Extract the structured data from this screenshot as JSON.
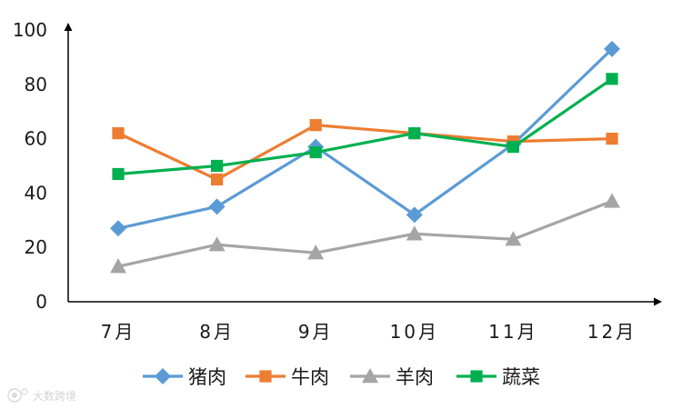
{
  "chart_data": {
    "type": "line",
    "title": "",
    "xlabel": "",
    "ylabel": "",
    "categories": [
      "7月",
      "8月",
      "9月",
      "10月",
      "11月",
      "12月"
    ],
    "ylim": [
      0,
      100
    ],
    "yticks": [
      0,
      20,
      40,
      60,
      80,
      100
    ],
    "grid": false,
    "legend_position": "bottom",
    "series": [
      {
        "name": "猪肉",
        "color": "#5B9BD5",
        "marker": "diamond",
        "values": [
          27,
          35,
          57,
          32,
          58,
          93
        ]
      },
      {
        "name": "牛肉",
        "color": "#ED7D31",
        "marker": "square",
        "values": [
          62,
          45,
          65,
          62,
          59,
          60
        ]
      },
      {
        "name": "羊肉",
        "color": "#A5A5A5",
        "marker": "triangle",
        "values": [
          13,
          21,
          18,
          25,
          23,
          37
        ]
      },
      {
        "name": "蔬菜",
        "color": "#00B050",
        "marker": "square",
        "values": [
          47,
          50,
          55,
          62,
          57,
          82
        ]
      }
    ]
  },
  "watermark": {
    "text": "大数跨境",
    "icon": "camera-logo-icon"
  }
}
